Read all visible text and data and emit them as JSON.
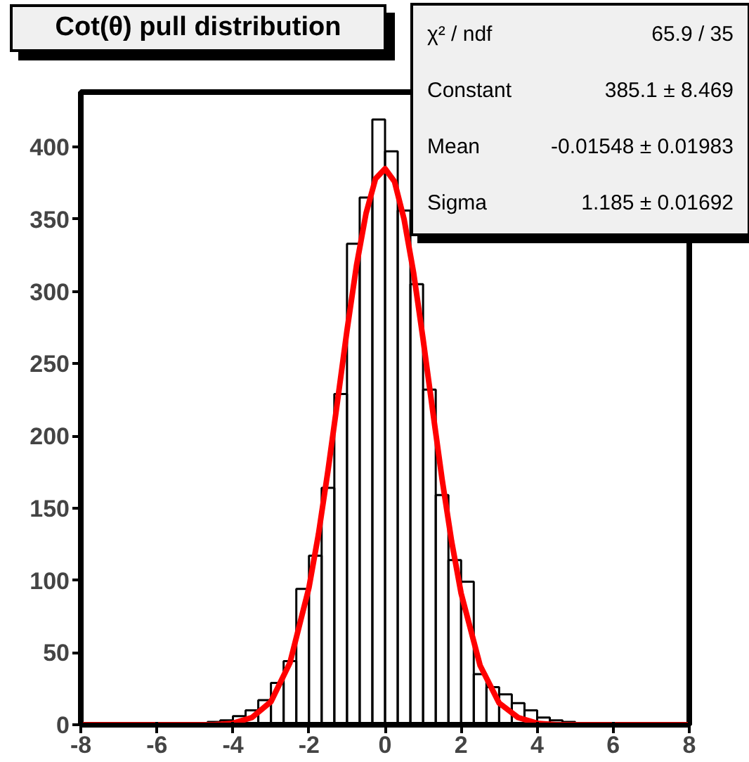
{
  "chart_data": {
    "type": "histogram",
    "title": "Cot(θ) pull distribution",
    "annotations": [
      "χ² / ndf",
      "65.9 / 35",
      "Constant",
      "385.1 ± 8.469",
      "Mean",
      "-0.01548 ± 0.01983",
      "Sigma",
      "1.185 ± 0.01692"
    ],
    "xlim": [
      -8,
      8
    ],
    "ylim": [
      0,
      438
    ],
    "xticks": [
      -8,
      -6,
      -4,
      -2,
      0,
      2,
      4,
      6,
      8
    ],
    "yticks": [
      0,
      50,
      100,
      150,
      200,
      250,
      300,
      350,
      400
    ],
    "grid": false,
    "series": [
      {
        "color": "#000000",
        "bins": [
          -8,
          -7.6667,
          -7.3333,
          -7,
          -6.6667,
          -6.3333,
          -6,
          -5.6667,
          -5.3333,
          -5,
          -4.6667,
          -4.3333,
          -4,
          -3.6667,
          -3.3333,
          -3,
          -2.6667,
          -2.3333,
          -2,
          -1.6667,
          -1.3333,
          -1,
          -0.6667,
          -0.3333,
          0,
          0.3333,
          0.6667,
          1,
          1.3333,
          1.6667,
          2,
          2.3333,
          2.6667,
          3,
          3.3333,
          3.6667,
          4,
          4.3333,
          4.6667,
          5,
          5.3333,
          5.6667,
          6,
          6.3333,
          6.6667,
          7,
          7.3333,
          7.6667,
          8
        ],
        "values": [
          0,
          0,
          0,
          0,
          0,
          0,
          0,
          0,
          0,
          1,
          2,
          3,
          6,
          10,
          17,
          29,
          44,
          94,
          117,
          164,
          229,
          333,
          365,
          419,
          397,
          356,
          305,
          232,
          159,
          114,
          99,
          35,
          26,
          21,
          15,
          10,
          5,
          3,
          2,
          1,
          0,
          0,
          0,
          0,
          0,
          0,
          0,
          0
        ]
      },
      {
        "type": "line",
        "color": "#ff0000",
        "x": [
          -8,
          -6,
          -4.5,
          -4,
          -3.5,
          -3,
          -2.5,
          -2,
          -1.75,
          -1.5,
          -1.25,
          -1,
          -0.75,
          -0.5,
          -0.25,
          0,
          0.25,
          0.5,
          0.75,
          1,
          1.25,
          1.5,
          1.75,
          2,
          2.5,
          3,
          3.5,
          4,
          4.5,
          6,
          8
        ],
        "values": [
          0,
          0,
          0,
          1,
          5,
          16,
          43,
          95,
          132,
          176,
          224,
          273,
          318,
          354,
          378,
          385,
          376,
          350,
          313,
          267,
          218,
          170,
          127,
          91,
          41,
          15,
          5,
          1,
          0,
          0,
          0
        ]
      }
    ]
  }
}
